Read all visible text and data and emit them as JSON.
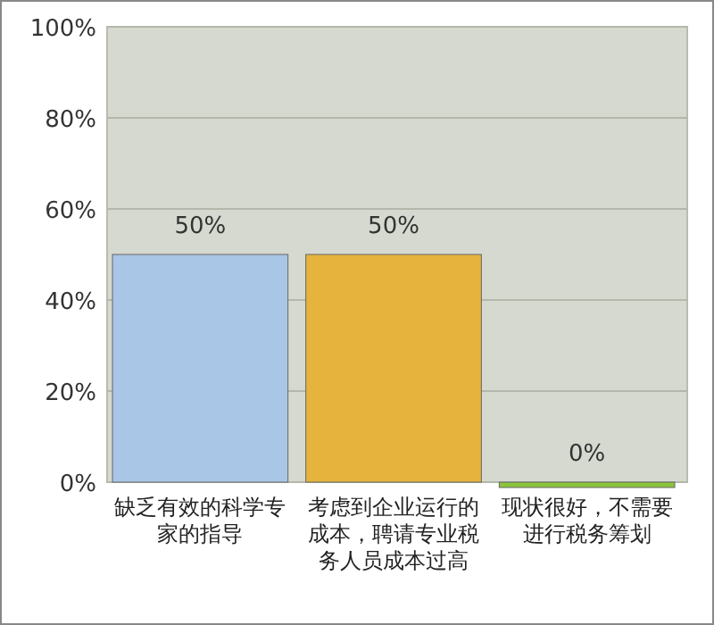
{
  "chart_data": {
    "type": "bar",
    "categories": [
      "缺乏有效的科学专家的指导",
      "考虑到企业运行的成本，聘请专业税务人员成本过高",
      "现状很好，不需要进行税务筹划"
    ],
    "values": [
      50,
      50,
      0
    ],
    "colors": [
      "#a9c6e6",
      "#e6b43c",
      "#8cc43c"
    ],
    "value_labels": [
      "50%",
      "50%",
      "0%"
    ],
    "ylim": [
      0,
      100
    ],
    "yticks": [
      {
        "value": 0,
        "label": "0%"
      },
      {
        "value": 20,
        "label": "20%"
      },
      {
        "value": 40,
        "label": "40%"
      },
      {
        "value": 60,
        "label": "60%"
      },
      {
        "value": 80,
        "label": "80%"
      },
      {
        "value": 100,
        "label": "100%"
      }
    ],
    "grid": "y"
  }
}
